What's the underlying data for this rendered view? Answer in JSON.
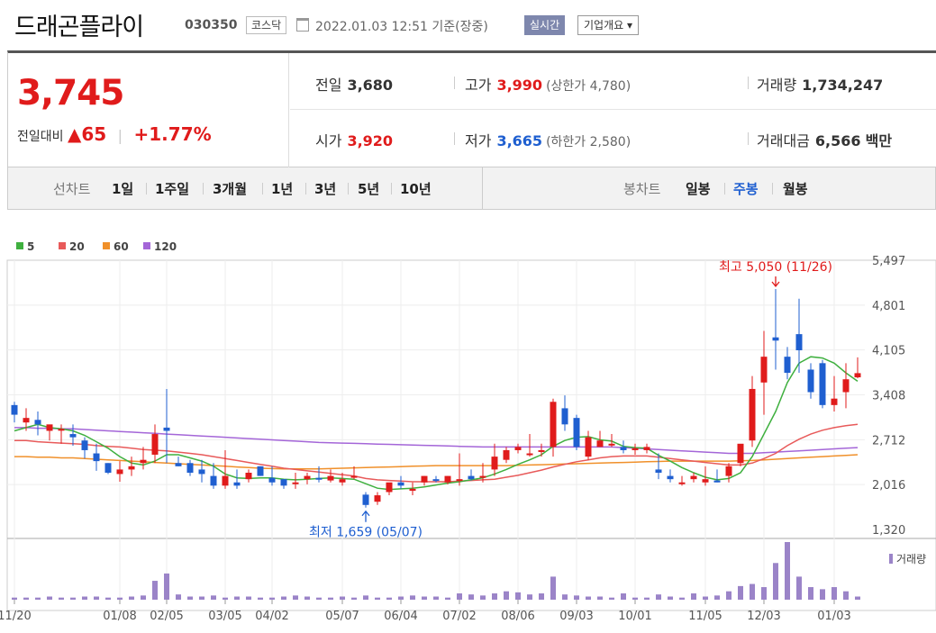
{
  "header": {
    "name": "드래곤플라이",
    "code": "030350",
    "market": "코스닥",
    "datetime": "2022.01.03 12:51",
    "basis": "기준(장중)",
    "realtime_label": "실시간",
    "company_button": "기업개요 ▾"
  },
  "summary": {
    "price": "3,745",
    "change_label": "전일대비",
    "change_value": "▲65",
    "change_rate": "+1.77%",
    "prev_label": "전일",
    "prev_value": "3,680",
    "open_label": "시가",
    "open_value": "3,920",
    "high_label": "고가",
    "high_value": "3,990",
    "upper_limit": "(상한가 4,780)",
    "low_label": "저가",
    "low_value": "3,665",
    "lower_limit": "(하한가 2,580)",
    "volume_label": "거래량",
    "volume_value": "1,734,247",
    "amount_label": "거래대금",
    "amount_value": "6,566",
    "amount_unit": "백만"
  },
  "period_bar": {
    "line_label": "선차트",
    "line_items": [
      "1일",
      "1주일",
      "3개월",
      "1년",
      "3년",
      "5년",
      "10년"
    ],
    "candle_label": "봉차트",
    "candle_items": [
      "일봉",
      "주봉",
      "월봉"
    ],
    "active": "주봉"
  },
  "colors": {
    "up": "#e01b1b",
    "down": "#1f5fd0",
    "ma5": "#3fb03f",
    "ma20": "#e85a5a",
    "ma60": "#f0902a",
    "ma120": "#a466d8",
    "volume": "#9b84c8"
  },
  "chart_data": {
    "type": "candlestick",
    "legend": [
      "5",
      "20",
      "60",
      "120"
    ],
    "y_ticks": [
      "5,497",
      "4,801",
      "4,105",
      "3,408",
      "2,712",
      "2,016",
      "1,320"
    ],
    "ylim": [
      1320,
      5497
    ],
    "x_ticks": [
      "11/20",
      "01/08",
      "02/05",
      "03/05",
      "04/02",
      "05/07",
      "06/04",
      "07/02",
      "08/06",
      "09/03",
      "10/01",
      "11/05",
      "12/03",
      "01/03"
    ],
    "max_label": "최고 5,050 (11/26)",
    "min_label": "최저 1,659 (05/07)",
    "volume_label": "거래량",
    "candles": [
      [
        3250,
        3300,
        3100,
        2980
      ],
      [
        2980,
        3200,
        3050,
        2850
      ],
      [
        3020,
        3150,
        2950,
        2780
      ],
      [
        2850,
        2920,
        2950,
        2700
      ],
      [
        2880,
        2950,
        2880,
        2650
      ],
      [
        2800,
        2950,
        2750,
        2620
      ],
      [
        2700,
        2750,
        2550,
        2420
      ],
      [
        2500,
        2650,
        2380,
        2230
      ],
      [
        2350,
        2350,
        2200,
        2180
      ],
      [
        2180,
        2380,
        2250,
        2060
      ],
      [
        2250,
        2450,
        2300,
        2150
      ],
      [
        2350,
        2600,
        2400,
        2250
      ],
      [
        2480,
        2950,
        2800,
        2350
      ],
      [
        2900,
        3500,
        2850,
        2350
      ],
      [
        2350,
        2450,
        2300,
        2300
      ],
      [
        2350,
        2400,
        2200,
        2150
      ],
      [
        2250,
        2400,
        2180,
        2050
      ],
      [
        2150,
        2350,
        2000,
        1950
      ],
      [
        2000,
        2550,
        2150,
        1950
      ],
      [
        2050,
        2250,
        2000,
        1950
      ],
      [
        2100,
        2250,
        2200,
        2050
      ],
      [
        2300,
        2300,
        2150,
        2150
      ],
      [
        2120,
        2300,
        2050,
        2000
      ],
      [
        2100,
        2100,
        2000,
        1950
      ],
      [
        2050,
        2200,
        2050,
        1950
      ],
      [
        2100,
        2200,
        2150,
        2020
      ],
      [
        2120,
        2300,
        2100,
        2050
      ],
      [
        2080,
        2250,
        2150,
        2050
      ],
      [
        2050,
        2200,
        2100,
        2000
      ],
      [
        2150,
        2300,
        2150,
        2100
      ],
      [
        1860,
        1900,
        1700,
        1659
      ],
      [
        1750,
        1900,
        1850,
        1700
      ],
      [
        1900,
        2000,
        2050,
        1850
      ],
      [
        2050,
        2150,
        2000,
        1950
      ],
      [
        1920,
        2050,
        1950,
        1850
      ],
      [
        2050,
        2150,
        2150,
        2000
      ],
      [
        2100,
        2150,
        2080,
        2050
      ],
      [
        2050,
        2150,
        2150,
        2020
      ],
      [
        2100,
        2500,
        2100,
        2000
      ],
      [
        2150,
        2250,
        2100,
        2080
      ],
      [
        2150,
        2350,
        2150,
        2050
      ],
      [
        2250,
        2650,
        2450,
        2150
      ],
      [
        2400,
        2600,
        2550,
        2350
      ],
      [
        2550,
        2650,
        2600,
        2500
      ],
      [
        2500,
        2800,
        2500,
        2450
      ],
      [
        2550,
        2650,
        2550,
        2450
      ],
      [
        2600,
        3350,
        3300,
        2450
      ],
      [
        3200,
        3400,
        2950,
        2850
      ],
      [
        3050,
        3100,
        2600,
        2550
      ],
      [
        2450,
        2850,
        2750,
        2400
      ],
      [
        2600,
        2850,
        2700,
        2600
      ],
      [
        2650,
        2800,
        2650,
        2600
      ],
      [
        2600,
        2700,
        2550,
        2500
      ],
      [
        2550,
        2650,
        2580,
        2480
      ],
      [
        2550,
        2650,
        2600,
        2500
      ],
      [
        2250,
        2500,
        2200,
        2100
      ],
      [
        2150,
        2250,
        2100,
        2050
      ],
      [
        2050,
        2150,
        2050,
        2000
      ],
      [
        2100,
        2200,
        2150,
        2050
      ],
      [
        2050,
        2300,
        2100,
        2000
      ],
      [
        2080,
        2250,
        2050,
        2050
      ],
      [
        2150,
        2350,
        2300,
        2050
      ],
      [
        2350,
        2600,
        2650,
        2300
      ],
      [
        2700,
        3700,
        3500,
        2600
      ],
      [
        3600,
        4400,
        4000,
        3100
      ],
      [
        4300,
        5050,
        4250,
        3800
      ],
      [
        4000,
        4150,
        3750,
        3650
      ],
      [
        4350,
        4900,
        4100,
        3750
      ],
      [
        3800,
        3900,
        3450,
        3350
      ],
      [
        3900,
        3950,
        3250,
        3200
      ],
      [
        3250,
        3700,
        3350,
        3150
      ],
      [
        3450,
        3900,
        3650,
        3200
      ],
      [
        3680,
        3990,
        3745,
        3665
      ]
    ],
    "volumes": [
      2,
      2,
      2,
      3,
      2,
      2,
      3,
      3,
      2,
      2,
      3,
      4,
      18,
      25,
      5,
      3,
      3,
      4,
      2,
      3,
      3,
      2,
      2,
      3,
      4,
      3,
      2,
      2,
      3,
      2,
      4,
      2,
      2,
      3,
      4,
      3,
      3,
      2,
      6,
      5,
      4,
      6,
      8,
      7,
      5,
      6,
      22,
      5,
      4,
      3,
      3,
      2,
      6,
      2,
      2,
      5,
      3,
      2,
      6,
      3,
      4,
      8,
      13,
      15,
      12,
      35,
      55,
      22,
      12,
      10,
      12,
      8,
      3
    ],
    "ma5": [
      2850,
      2900,
      2950,
      2900,
      2880,
      2850,
      2780,
      2680,
      2580,
      2450,
      2350,
      2320,
      2380,
      2480,
      2480,
      2430,
      2380,
      2300,
      2180,
      2120,
      2110,
      2120,
      2120,
      2100,
      2090,
      2100,
      2110,
      2120,
      2110,
      2100,
      2030,
      1960,
      1940,
      1950,
      1960,
      1980,
      2010,
      2040,
      2060,
      2090,
      2120,
      2180,
      2250,
      2330,
      2400,
      2480,
      2610,
      2700,
      2750,
      2760,
      2710,
      2690,
      2610,
      2590,
      2580,
      2470,
      2380,
      2280,
      2200,
      2130,
      2090,
      2110,
      2200,
      2450,
      2800,
      3150,
      3600,
      3900,
      4000,
      3980,
      3900,
      3750,
      3620
    ],
    "ma20": [
      2700,
      2700,
      2680,
      2670,
      2660,
      2650,
      2640,
      2620,
      2610,
      2600,
      2580,
      2560,
      2550,
      2540,
      2520,
      2500,
      2480,
      2450,
      2420,
      2390,
      2360,
      2330,
      2300,
      2270,
      2250,
      2230,
      2210,
      2190,
      2170,
      2150,
      2110,
      2090,
      2080,
      2070,
      2060,
      2060,
      2060,
      2060,
      2070,
      2080,
      2090,
      2100,
      2130,
      2160,
      2200,
      2240,
      2290,
      2330,
      2370,
      2400,
      2430,
      2450,
      2460,
      2460,
      2460,
      2440,
      2420,
      2400,
      2380,
      2360,
      2340,
      2320,
      2320,
      2350,
      2420,
      2500,
      2620,
      2720,
      2800,
      2860,
      2900,
      2930,
      2950
    ],
    "ma60": [
      2450,
      2450,
      2440,
      2440,
      2430,
      2430,
      2420,
      2410,
      2400,
      2390,
      2380,
      2370,
      2360,
      2350,
      2340,
      2330,
      2320,
      2310,
      2300,
      2290,
      2280,
      2270,
      2265,
      2260,
      2260,
      2260,
      2260,
      2265,
      2270,
      2275,
      2280,
      2285,
      2290,
      2295,
      2300,
      2305,
      2310,
      2310,
      2310,
      2310,
      2310,
      2310,
      2310,
      2315,
      2320,
      2325,
      2330,
      2335,
      2340,
      2345,
      2350,
      2355,
      2360,
      2365,
      2370,
      2375,
      2380,
      2380,
      2380,
      2380,
      2380,
      2380,
      2385,
      2390,
      2400,
      2410,
      2420,
      2430,
      2440,
      2450,
      2460,
      2470,
      2480
    ],
    "ma120": [
      2900,
      2900,
      2890,
      2890,
      2880,
      2880,
      2870,
      2860,
      2850,
      2840,
      2830,
      2820,
      2810,
      2800,
      2790,
      2780,
      2770,
      2760,
      2750,
      2740,
      2730,
      2720,
      2710,
      2700,
      2690,
      2680,
      2670,
      2665,
      2660,
      2655,
      2650,
      2645,
      2640,
      2635,
      2630,
      2625,
      2620,
      2615,
      2610,
      2605,
      2600,
      2600,
      2600,
      2600,
      2600,
      2600,
      2600,
      2600,
      2600,
      2600,
      2600,
      2600,
      2590,
      2580,
      2570,
      2560,
      2550,
      2540,
      2530,
      2520,
      2510,
      2500,
      2500,
      2500,
      2510,
      2520,
      2530,
      2540,
      2550,
      2560,
      2570,
      2580,
      2590
    ]
  }
}
